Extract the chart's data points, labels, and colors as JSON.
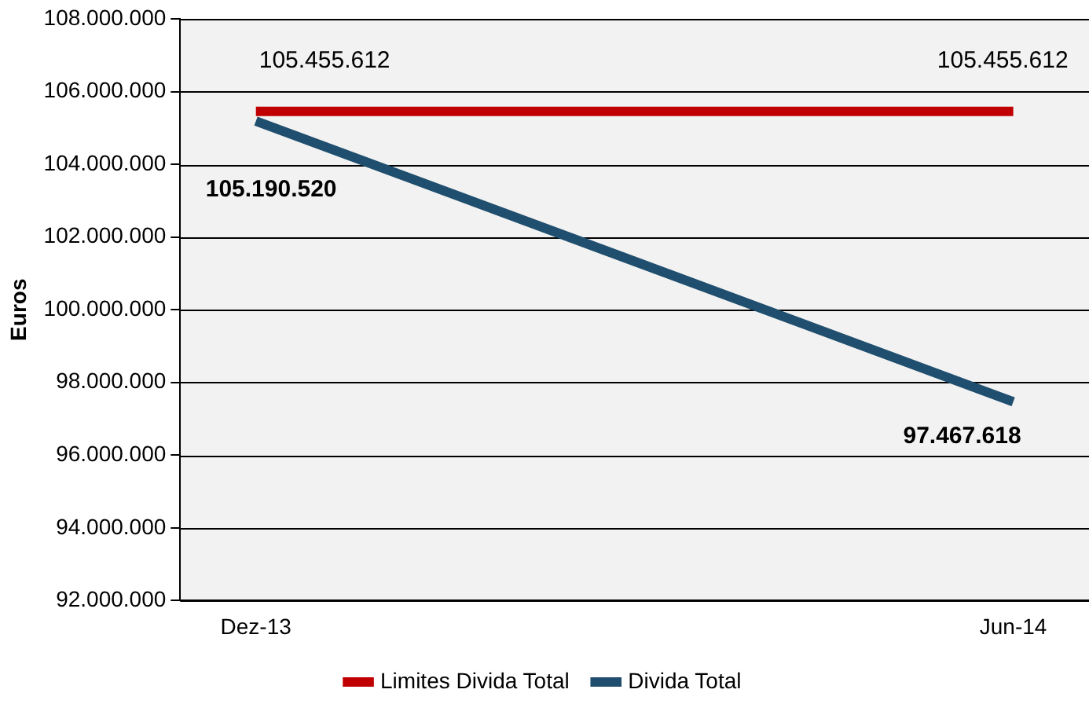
{
  "chart_data": {
    "type": "line",
    "ylabel": "Euros",
    "categories": [
      "Dez-13",
      "Jun-14"
    ],
    "series": [
      {
        "name": "Limites Divida Total",
        "color": "#c00000",
        "values": [
          105455612,
          105455612
        ],
        "value_labels": [
          "105.455.612",
          "105.455.612"
        ]
      },
      {
        "name": "Divida Total",
        "color": "#1f4e6e",
        "values": [
          105190520,
          97467618
        ],
        "value_labels": [
          "105.190.520",
          "97.467.618"
        ]
      }
    ],
    "ylim": [
      92000000,
      108000000
    ],
    "yticks": [
      {
        "value": 92000000,
        "label": "92.000.000"
      },
      {
        "value": 94000000,
        "label": "94.000.000"
      },
      {
        "value": 96000000,
        "label": "96.000.000"
      },
      {
        "value": 98000000,
        "label": "98.000.000"
      },
      {
        "value": 100000000,
        "label": "100.000.000"
      },
      {
        "value": 102000000,
        "label": "102.000.000"
      },
      {
        "value": 104000000,
        "label": "104.000.000"
      },
      {
        "value": 106000000,
        "label": "106.000.000"
      },
      {
        "value": 108000000,
        "label": "108.000.000"
      }
    ],
    "grid": "y",
    "legend": "bottom",
    "marker": "none",
    "line_style": "solid"
  }
}
